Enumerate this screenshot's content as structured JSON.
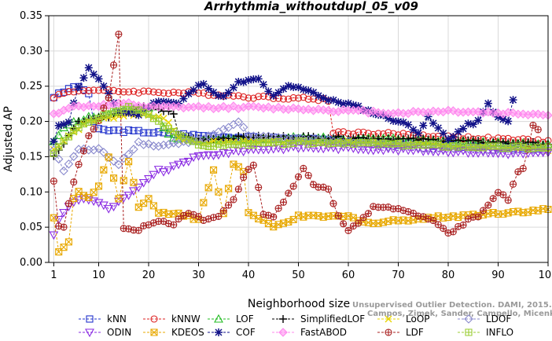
{
  "chart_data": {
    "type": "line",
    "title": "Arrhythmia_withoutdupl_05_v09",
    "xlabel": "Neighborhood size",
    "ylabel": "Adjusted AP",
    "xlim": [
      0,
      100
    ],
    "ylim": [
      0,
      0.35
    ],
    "x_ticks": [
      1,
      10,
      20,
      30,
      40,
      50,
      60,
      70,
      80,
      90,
      100
    ],
    "y_ticks": [
      "0.00",
      "0.05",
      "0.10",
      "0.15",
      "0.20",
      "0.25",
      "0.30",
      "0.35"
    ],
    "legend_position": "bottom",
    "watermark_lines": [
      "Unsupervised Outlier Detection. DAMI, 2015.",
      "Campos, Zimek, Sander, Campello, Micenkova, Schubert, Assent, Houle"
    ],
    "series": [
      {
        "name": "kNN",
        "color": "#2233cc",
        "marker": "square",
        "anchors": [
          [
            1,
            0.235
          ],
          [
            3,
            0.242
          ],
          [
            5,
            0.25
          ],
          [
            7,
            0.245
          ],
          [
            8,
            0.24
          ],
          [
            9,
            0.2
          ],
          [
            10,
            0.188
          ],
          [
            20,
            0.185
          ],
          [
            30,
            0.18
          ],
          [
            40,
            0.177
          ],
          [
            50,
            0.175
          ],
          [
            60,
            0.172
          ],
          [
            70,
            0.168
          ],
          [
            80,
            0.165
          ],
          [
            90,
            0.163
          ],
          [
            100,
            0.162
          ]
        ]
      },
      {
        "name": "kNNW",
        "color": "#dd2222",
        "marker": "circle",
        "anchors": [
          [
            1,
            0.235
          ],
          [
            4,
            0.242
          ],
          [
            8,
            0.245
          ],
          [
            12,
            0.243
          ],
          [
            20,
            0.242
          ],
          [
            30,
            0.24
          ],
          [
            40,
            0.235
          ],
          [
            50,
            0.233
          ],
          [
            55,
            0.231
          ],
          [
            56,
            0.229
          ],
          [
            57,
            0.185
          ],
          [
            60,
            0.184
          ],
          [
            70,
            0.182
          ],
          [
            80,
            0.178
          ],
          [
            90,
            0.175
          ],
          [
            100,
            0.172
          ]
        ]
      },
      {
        "name": "LOF",
        "color": "#22bb22",
        "marker": "triangle-up",
        "anchors": [
          [
            1,
            0.17
          ],
          [
            3,
            0.19
          ],
          [
            5,
            0.2
          ],
          [
            8,
            0.205
          ],
          [
            12,
            0.21
          ],
          [
            16,
            0.218
          ],
          [
            20,
            0.22
          ],
          [
            22,
            0.22
          ],
          [
            23,
            0.19
          ],
          [
            25,
            0.175
          ],
          [
            30,
            0.173
          ],
          [
            40,
            0.175
          ],
          [
            50,
            0.177
          ],
          [
            60,
            0.175
          ],
          [
            70,
            0.175
          ],
          [
            80,
            0.172
          ],
          [
            90,
            0.17
          ],
          [
            100,
            0.168
          ]
        ]
      },
      {
        "name": "SimplifiedLOF",
        "color": "#000000",
        "marker": "plus",
        "anchors": [
          [
            1,
            0.15
          ],
          [
            2,
            0.16
          ],
          [
            4,
            0.18
          ],
          [
            6,
            0.2
          ],
          [
            10,
            0.205
          ],
          [
            14,
            0.21
          ],
          [
            18,
            0.22
          ],
          [
            21,
            0.22
          ],
          [
            23,
            0.215
          ],
          [
            25,
            0.212
          ],
          [
            26,
            0.18
          ],
          [
            30,
            0.175
          ],
          [
            40,
            0.178
          ],
          [
            50,
            0.178
          ],
          [
            60,
            0.177
          ],
          [
            70,
            0.175
          ],
          [
            80,
            0.173
          ],
          [
            90,
            0.17
          ],
          [
            100,
            0.168
          ]
        ]
      },
      {
        "name": "LoOP",
        "color": "#e8d400",
        "marker": "x",
        "anchors": [
          [
            1,
            0.16
          ],
          [
            4,
            0.18
          ],
          [
            8,
            0.2
          ],
          [
            12,
            0.205
          ],
          [
            16,
            0.21
          ],
          [
            20,
            0.21
          ],
          [
            24,
            0.2
          ],
          [
            26,
            0.175
          ],
          [
            30,
            0.17
          ],
          [
            40,
            0.172
          ],
          [
            50,
            0.172
          ],
          [
            60,
            0.17
          ],
          [
            70,
            0.168
          ],
          [
            80,
            0.165
          ],
          [
            90,
            0.162
          ],
          [
            100,
            0.16
          ]
        ]
      },
      {
        "name": "LDOF",
        "color": "#8888cc",
        "marker": "diamond",
        "anchors": [
          [
            1,
            0.16
          ],
          [
            3,
            0.13
          ],
          [
            6,
            0.16
          ],
          [
            10,
            0.16
          ],
          [
            14,
            0.14
          ],
          [
            18,
            0.17
          ],
          [
            22,
            0.165
          ],
          [
            26,
            0.17
          ],
          [
            30,
            0.172
          ],
          [
            36,
            0.19
          ],
          [
            38,
            0.2
          ],
          [
            40,
            0.18
          ],
          [
            50,
            0.175
          ],
          [
            60,
            0.17
          ],
          [
            70,
            0.165
          ],
          [
            80,
            0.162
          ],
          [
            90,
            0.16
          ],
          [
            100,
            0.158
          ]
        ]
      },
      {
        "name": "ODIN",
        "color": "#8a2be2",
        "marker": "triangle-down",
        "anchors": [
          [
            1,
            0.04
          ],
          [
            2,
            0.06
          ],
          [
            4,
            0.08
          ],
          [
            6,
            0.09
          ],
          [
            8,
            0.09
          ],
          [
            10,
            0.085
          ],
          [
            12,
            0.075
          ],
          [
            14,
            0.085
          ],
          [
            16,
            0.095
          ],
          [
            18,
            0.105
          ],
          [
            20,
            0.12
          ],
          [
            22,
            0.13
          ],
          [
            24,
            0.13
          ],
          [
            26,
            0.14
          ],
          [
            28,
            0.145
          ],
          [
            30,
            0.15
          ],
          [
            40,
            0.16
          ],
          [
            50,
            0.163
          ],
          [
            60,
            0.162
          ],
          [
            70,
            0.16
          ],
          [
            80,
            0.158
          ],
          [
            90,
            0.155
          ],
          [
            100,
            0.155
          ]
        ]
      },
      {
        "name": "KDEOS",
        "color": "#e8a800",
        "marker": "square-x",
        "anchors": [
          [
            1,
            0.065
          ],
          [
            2,
            0.015
          ],
          [
            3,
            0.02
          ],
          [
            4,
            0.03
          ],
          [
            5,
            0.09
          ],
          [
            6,
            0.1
          ],
          [
            8,
            0.09
          ],
          [
            10,
            0.11
          ],
          [
            12,
            0.15
          ],
          [
            14,
            0.09
          ],
          [
            16,
            0.145
          ],
          [
            18,
            0.08
          ],
          [
            20,
            0.09
          ],
          [
            22,
            0.07
          ],
          [
            26,
            0.07
          ],
          [
            30,
            0.06
          ],
          [
            33,
            0.13
          ],
          [
            35,
            0.07
          ],
          [
            37,
            0.14
          ],
          [
            39,
            0.13
          ],
          [
            40,
            0.07
          ],
          [
            45,
            0.05
          ],
          [
            50,
            0.065
          ],
          [
            60,
            0.065
          ],
          [
            65,
            0.055
          ],
          [
            70,
            0.06
          ],
          [
            80,
            0.065
          ],
          [
            90,
            0.07
          ],
          [
            100,
            0.075
          ]
        ]
      },
      {
        "name": "COF",
        "color": "#111188",
        "marker": "star",
        "anchors": [
          [
            1,
            0.17
          ],
          [
            2,
            0.195
          ],
          [
            4,
            0.2
          ],
          [
            6,
            0.25
          ],
          [
            8,
            0.275
          ],
          [
            10,
            0.26
          ],
          [
            14,
            0.215
          ],
          [
            18,
            0.21
          ],
          [
            22,
            0.23
          ],
          [
            26,
            0.225
          ],
          [
            29,
            0.245
          ],
          [
            31,
            0.255
          ],
          [
            34,
            0.235
          ],
          [
            36,
            0.24
          ],
          [
            38,
            0.255
          ],
          [
            42,
            0.26
          ],
          [
            45,
            0.235
          ],
          [
            48,
            0.25
          ],
          [
            52,
            0.245
          ],
          [
            56,
            0.23
          ],
          [
            60,
            0.225
          ],
          [
            64,
            0.215
          ],
          [
            68,
            0.205
          ],
          [
            72,
            0.195
          ],
          [
            74,
            0.185
          ],
          [
            76,
            0.205
          ],
          [
            78,
            0.19
          ],
          [
            80,
            0.175
          ],
          [
            82,
            0.185
          ],
          [
            84,
            0.195
          ],
          [
            86,
            0.2
          ],
          [
            88,
            0.225
          ],
          [
            90,
            0.205
          ],
          [
            92,
            0.2
          ],
          [
            93,
            0.23
          ]
        ]
      },
      {
        "name": "FastABOD",
        "color": "#ff88ee",
        "marker": "diamond-filled",
        "anchors": [
          [
            1,
            0.21
          ],
          [
            4,
            0.22
          ],
          [
            8,
            0.222
          ],
          [
            12,
            0.223
          ],
          [
            16,
            0.225
          ],
          [
            20,
            0.22
          ],
          [
            30,
            0.22
          ],
          [
            40,
            0.22
          ],
          [
            50,
            0.218
          ],
          [
            60,
            0.215
          ],
          [
            70,
            0.212
          ],
          [
            80,
            0.215
          ],
          [
            90,
            0.212
          ],
          [
            100,
            0.21
          ]
        ]
      },
      {
        "name": "LDF",
        "color": "#aa2222",
        "marker": "circle-plus",
        "anchors": [
          [
            1,
            0.115
          ],
          [
            2,
            0.05
          ],
          [
            3,
            0.05
          ],
          [
            4,
            0.085
          ],
          [
            6,
            0.14
          ],
          [
            8,
            0.18
          ],
          [
            10,
            0.2
          ],
          [
            12,
            0.235
          ],
          [
            14,
            0.323
          ],
          [
            15,
            0.05
          ],
          [
            18,
            0.045
          ],
          [
            20,
            0.055
          ],
          [
            22,
            0.06
          ],
          [
            25,
            0.055
          ],
          [
            28,
            0.07
          ],
          [
            31,
            0.06
          ],
          [
            34,
            0.065
          ],
          [
            37,
            0.09
          ],
          [
            39,
            0.12
          ],
          [
            41,
            0.14
          ],
          [
            43,
            0.07
          ],
          [
            45,
            0.065
          ],
          [
            47,
            0.085
          ],
          [
            49,
            0.11
          ],
          [
            51,
            0.135
          ],
          [
            53,
            0.11
          ],
          [
            56,
            0.105
          ],
          [
            58,
            0.065
          ],
          [
            60,
            0.045
          ],
          [
            62,
            0.055
          ],
          [
            64,
            0.07
          ],
          [
            65,
            0.08
          ],
          [
            70,
            0.075
          ],
          [
            75,
            0.065
          ],
          [
            78,
            0.055
          ],
          [
            80,
            0.04
          ],
          [
            82,
            0.05
          ],
          [
            84,
            0.06
          ],
          [
            86,
            0.065
          ],
          [
            88,
            0.08
          ],
          [
            90,
            0.1
          ],
          [
            92,
            0.09
          ],
          [
            94,
            0.13
          ],
          [
            95,
            0.135
          ],
          [
            96,
            0.16
          ],
          [
            97,
            0.195
          ],
          [
            98,
            0.19
          ]
        ]
      },
      {
        "name": "INFLO",
        "color": "#99cc33",
        "marker": "square-plus",
        "anchors": [
          [
            1,
            0.155
          ],
          [
            4,
            0.18
          ],
          [
            8,
            0.2
          ],
          [
            12,
            0.21
          ],
          [
            16,
            0.22
          ],
          [
            20,
            0.21
          ],
          [
            24,
            0.19
          ],
          [
            28,
            0.175
          ],
          [
            30,
            0.165
          ],
          [
            40,
            0.168
          ],
          [
            50,
            0.17
          ],
          [
            60,
            0.17
          ],
          [
            70,
            0.167
          ],
          [
            80,
            0.165
          ],
          [
            90,
            0.163
          ],
          [
            100,
            0.162
          ]
        ]
      }
    ]
  }
}
